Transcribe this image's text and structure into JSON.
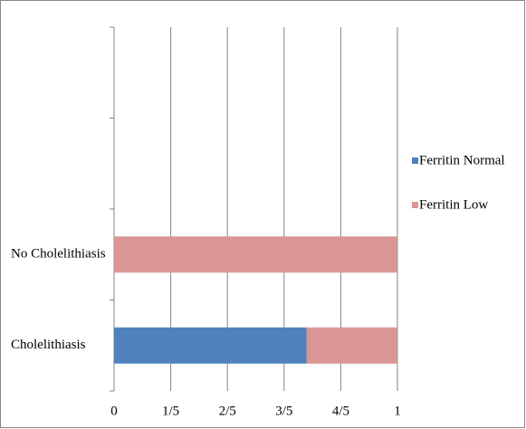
{
  "chart_data": {
    "type": "stacked-bar-horizontal",
    "categories": [
      "Cholelithiasis",
      "No Cholelithiasis",
      null,
      null
    ],
    "series": [
      {
        "name": "Ferritin Normal",
        "color": "#4f81bd",
        "values": [
          0.68,
          0,
          null,
          null
        ]
      },
      {
        "name": "Ferritin Low",
        "color": "#d99694",
        "values": [
          0.32,
          1,
          null,
          null
        ]
      }
    ],
    "xlim": [
      0,
      1
    ],
    "xticks": [
      0,
      {
        "value": 0.2,
        "label": "1/5"
      },
      {
        "value": 0.4,
        "label": "2/5"
      },
      {
        "value": 0.6,
        "label": "3/5"
      },
      {
        "value": 0.8,
        "label": "4/5"
      },
      1
    ],
    "grid": true,
    "legend": "right"
  }
}
